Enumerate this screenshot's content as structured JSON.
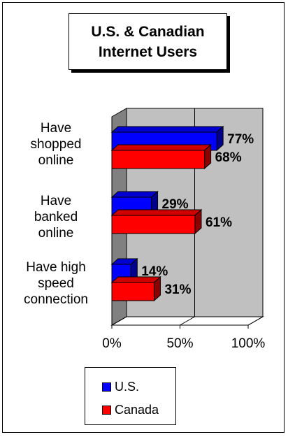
{
  "chart_data": {
    "type": "bar",
    "orientation": "horizontal",
    "three_d": true,
    "title": "U.S. & Canadian Internet Users",
    "title_lines": [
      "U.S. &",
      "Canadian",
      "Internet Users"
    ],
    "categories": [
      "Have shopped online",
      "Have banked online",
      "Have high speed connection"
    ],
    "category_lines": [
      [
        "Have",
        "shopped",
        "online"
      ],
      [
        "Have",
        "banked",
        "online"
      ],
      [
        "Have high",
        "speed",
        "connection"
      ]
    ],
    "series": [
      {
        "name": "U.S.",
        "color": "#0000ff",
        "values": [
          77,
          29,
          14
        ],
        "labels": [
          "77%",
          "29%",
          "14%"
        ]
      },
      {
        "name": "Canada",
        "color": "#ff0000",
        "values": [
          68,
          61,
          31
        ],
        "labels": [
          "68%",
          "61%",
          "31%"
        ]
      }
    ],
    "xlim": [
      0,
      100
    ],
    "x_ticks": [
      "0%",
      "50%",
      "100%"
    ],
    "xlabel": "",
    "ylabel": "",
    "grid": true,
    "legend": "bottom",
    "wall_color": "#c0c0c0",
    "side_wall_color": "#808080"
  }
}
